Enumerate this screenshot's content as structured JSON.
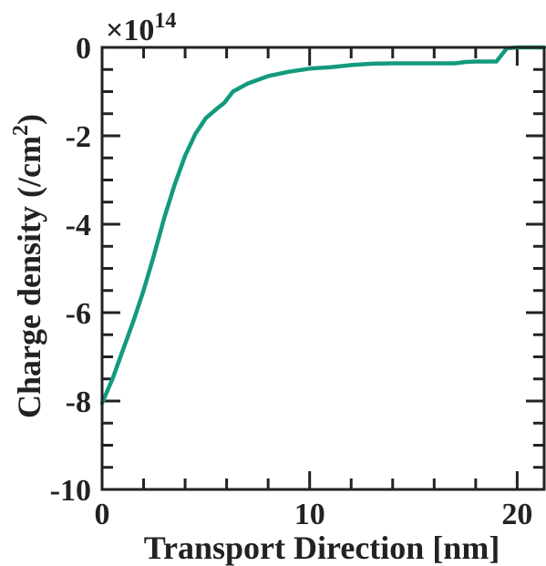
{
  "chart_data": {
    "type": "line",
    "title": "",
    "xlabel": "Transport Direction [nm]",
    "ylabel": "Charge density (/cm",
    "ylabel_superscript": "2",
    "ylabel_suffix": ")",
    "scale_label": "×10",
    "scale_exponent": "14",
    "xlim": [
      0,
      21.3
    ],
    "ylim": [
      -10,
      0
    ],
    "x_ticks": [
      0,
      10,
      20
    ],
    "x_tick_labels": [
      "0",
      "10",
      "20"
    ],
    "y_ticks": [
      0,
      -2,
      -4,
      -6,
      -8,
      -10
    ],
    "y_tick_labels": [
      "0",
      "-2",
      "-4",
      "-6",
      "-8",
      "-10"
    ],
    "grid": false,
    "line_color": "#139a7e",
    "series": [
      {
        "x": [
          0,
          0.5,
          1.0,
          1.5,
          2.0,
          2.5,
          3.0,
          3.5,
          4.0,
          4.5,
          5.0,
          5.5,
          5.9,
          6.3,
          7.0,
          8.0,
          9.0,
          10.0,
          11.0,
          12.0,
          13.0,
          14.0,
          15.0,
          16.0,
          17.0,
          17.5,
          18.0,
          18.5,
          19.0,
          19.5,
          20.0,
          21.0,
          21.3
        ],
        "y": [
          -8.05,
          -7.5,
          -6.85,
          -6.2,
          -5.5,
          -4.7,
          -3.85,
          -3.1,
          -2.45,
          -1.95,
          -1.6,
          -1.4,
          -1.25,
          -1.0,
          -0.82,
          -0.65,
          -0.55,
          -0.48,
          -0.45,
          -0.4,
          -0.37,
          -0.36,
          -0.36,
          -0.36,
          -0.36,
          -0.33,
          -0.32,
          -0.32,
          -0.32,
          -0.02,
          0,
          0,
          0
        ]
      }
    ]
  }
}
